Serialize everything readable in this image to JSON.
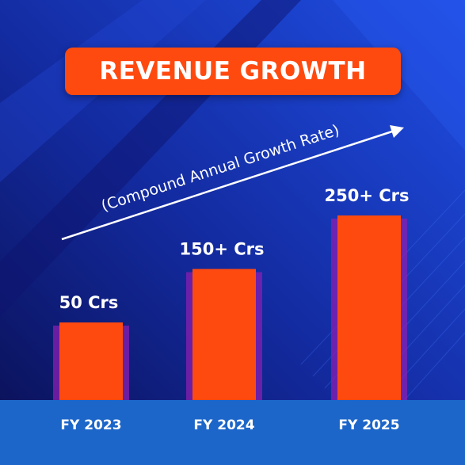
{
  "title": "REVENUE GROWTH",
  "colors": {
    "bg_dark": "#0d1466",
    "bg_blue": "#1a3fd6",
    "title_bg": "#ff4a0f",
    "bar": "#ff4a0f",
    "bar_edge": "#8a1fb0",
    "baseline_band": "#1c66c9",
    "text": "#ffffff"
  },
  "annotation": "(Compound Annual Growth Rate)",
  "chart_data": {
    "type": "bar",
    "title": "REVENUE GROWTH",
    "categories": [
      "FY 2023",
      "FY 2024",
      "FY 2025"
    ],
    "values": [
      50,
      150,
      250
    ],
    "data_labels": [
      "50 Crs",
      "150+ Crs",
      "250+ Crs"
    ],
    "ylim": [
      -95,
      250
    ],
    "xlabel": "",
    "ylabel": "",
    "grid": false,
    "legend": "none"
  }
}
